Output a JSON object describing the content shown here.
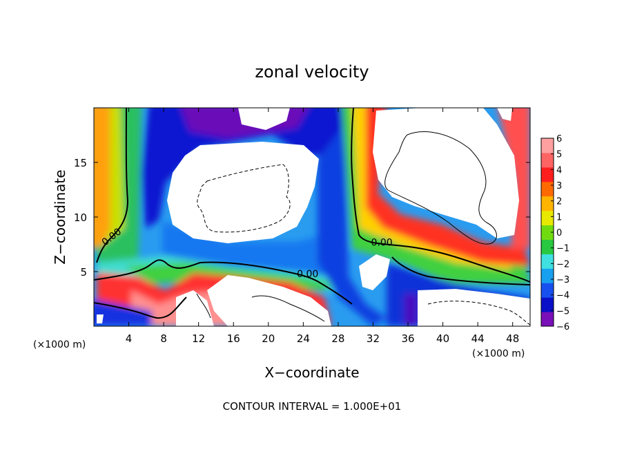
{
  "chart_data": {
    "type": "heatmap",
    "title": "zonal velocity",
    "xlabel": "X−coordinate",
    "ylabel": "Z−coordinate",
    "x_unit_label": "(×1000 m)",
    "y_unit_label": "(×1000 m)",
    "xlim": [
      0,
      50
    ],
    "ylim": [
      0,
      20
    ],
    "x_ticks": [
      4,
      8,
      12,
      16,
      20,
      24,
      28,
      32,
      36,
      40,
      44,
      48
    ],
    "y_ticks": [
      5,
      10,
      15
    ],
    "colorbar": {
      "ticks": [
        6,
        5,
        4,
        3,
        2,
        1,
        0,
        -1,
        -2,
        -3,
        -4,
        -5,
        -6
      ],
      "tick_labels": [
        "6",
        "5",
        "4",
        "3",
        "2",
        "1",
        "0",
        "−1",
        "−2",
        "−3",
        "−4",
        "−5",
        "−6"
      ],
      "range": [
        -6,
        6
      ],
      "colors": [
        "#7a10b8",
        "#0a10c8",
        "#1850f0",
        "#18a0f0",
        "#40e0e0",
        "#28c840",
        "#70dc10",
        "#e8e800",
        "#ffb400",
        "#ff6a00",
        "#ff1e1e",
        "#ff6464",
        "#ffa0a0"
      ]
    },
    "contour_labels": [
      {
        "text": "0.00",
        "x": 2.0,
        "z": 8.2
      },
      {
        "text": "0.00",
        "x": 33.0,
        "z": 7.7
      },
      {
        "text": "0.00",
        "x": 24.5,
        "z": 4.8
      }
    ],
    "footer": "CONTOUR INTERVAL = 1.000E+01"
  }
}
